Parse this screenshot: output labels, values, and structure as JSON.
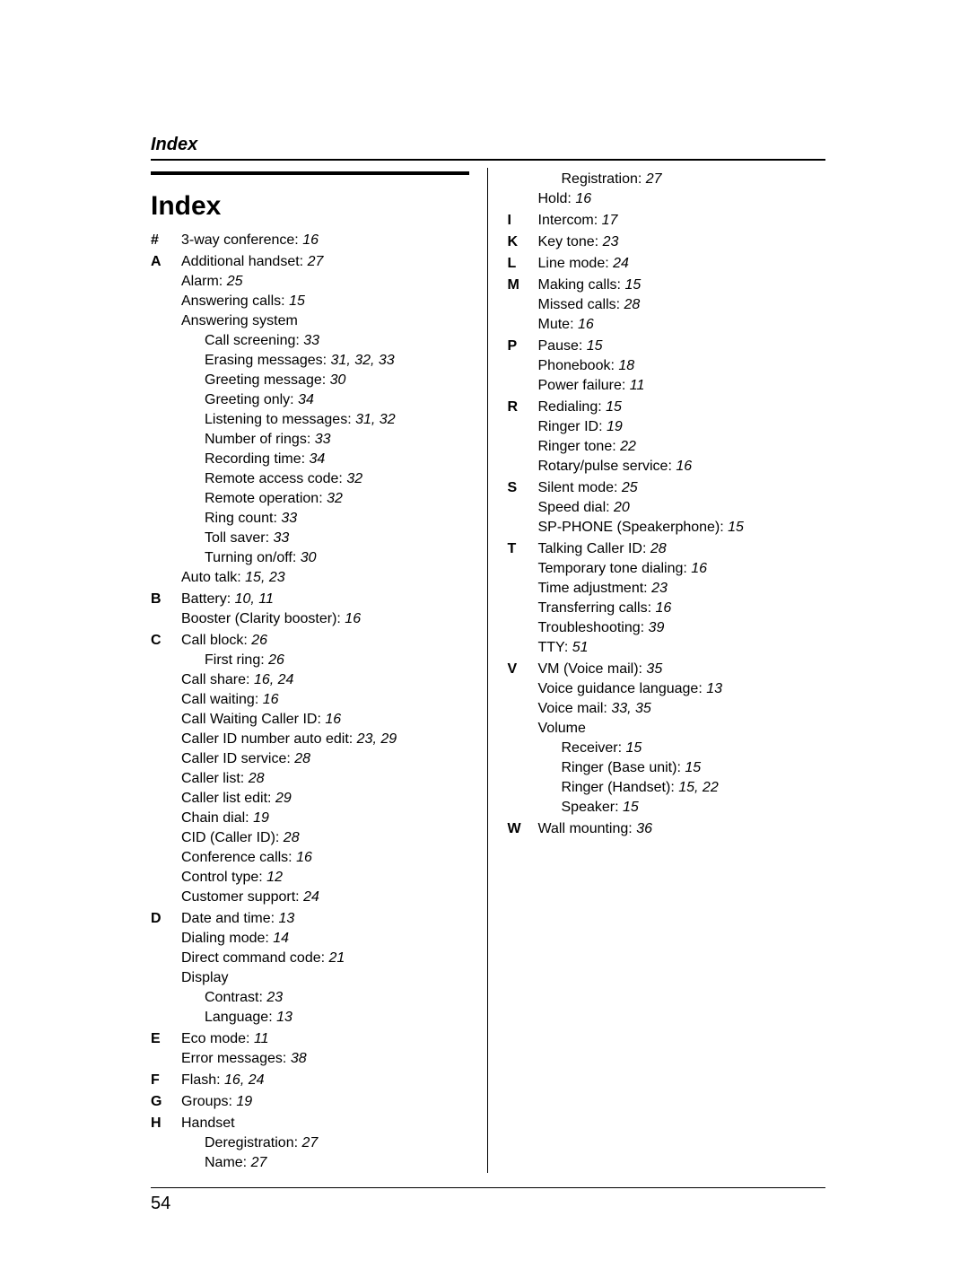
{
  "runningHead": "Index",
  "title": "Index",
  "pageNumber": "54",
  "left": [
    {
      "letter": "#",
      "entries": [
        {
          "topic": "3-way conference:",
          "pages": "16"
        }
      ]
    },
    {
      "letter": "A",
      "entries": [
        {
          "topic": "Additional handset:",
          "pages": "27"
        },
        {
          "topic": "Alarm:",
          "pages": "25"
        },
        {
          "topic": "Answering calls:",
          "pages": "15"
        },
        {
          "topic": "Answering system"
        },
        {
          "sub": true,
          "topic": "Call screening:",
          "pages": "33"
        },
        {
          "sub": true,
          "topic": "Erasing messages:",
          "pages": "31, 32, 33"
        },
        {
          "sub": true,
          "topic": "Greeting message:",
          "pages": "30"
        },
        {
          "sub": true,
          "topic": "Greeting only:",
          "pages": "34"
        },
        {
          "sub": true,
          "topic": "Listening to messages:",
          "pages": "31, 32"
        },
        {
          "sub": true,
          "topic": "Number of rings:",
          "pages": "33"
        },
        {
          "sub": true,
          "topic": "Recording time:",
          "pages": "34"
        },
        {
          "sub": true,
          "topic": "Remote access code:",
          "pages": "32"
        },
        {
          "sub": true,
          "topic": "Remote operation:",
          "pages": "32"
        },
        {
          "sub": true,
          "topic": "Ring count:",
          "pages": "33"
        },
        {
          "sub": true,
          "topic": "Toll saver:",
          "pages": "33"
        },
        {
          "sub": true,
          "topic": "Turning on/off:",
          "pages": "30"
        },
        {
          "topic": "Auto talk:",
          "pages": "15, 23"
        }
      ]
    },
    {
      "letter": "B",
      "entries": [
        {
          "topic": "Battery:",
          "pages": "10, 11"
        },
        {
          "topic": "Booster (Clarity booster):",
          "pages": "16"
        }
      ]
    },
    {
      "letter": "C",
      "entries": [
        {
          "topic": "Call block:",
          "pages": "26"
        },
        {
          "sub": true,
          "topic": "First ring:",
          "pages": "26"
        },
        {
          "topic": "Call share:",
          "pages": "16, 24"
        },
        {
          "topic": "Call waiting:",
          "pages": "16"
        },
        {
          "topic": "Call Waiting Caller ID:",
          "pages": "16"
        },
        {
          "topic": "Caller ID number auto edit:",
          "pages": "23, 29"
        },
        {
          "topic": "Caller ID service:",
          "pages": "28"
        },
        {
          "topic": "Caller list:",
          "pages": "28"
        },
        {
          "topic": "Caller list edit:",
          "pages": "29"
        },
        {
          "topic": "Chain dial:",
          "pages": "19"
        },
        {
          "topic": "CID (Caller ID):",
          "pages": "28"
        },
        {
          "topic": "Conference calls:",
          "pages": "16"
        },
        {
          "topic": "Control type:",
          "pages": "12"
        },
        {
          "topic": "Customer support:",
          "pages": "24"
        }
      ]
    },
    {
      "letter": "D",
      "entries": [
        {
          "topic": "Date and time:",
          "pages": "13"
        },
        {
          "topic": "Dialing mode:",
          "pages": "14"
        },
        {
          "topic": "Direct command code:",
          "pages": "21"
        },
        {
          "topic": "Display"
        },
        {
          "sub": true,
          "topic": "Contrast:",
          "pages": "23"
        },
        {
          "sub": true,
          "topic": "Language:",
          "pages": "13"
        }
      ]
    },
    {
      "letter": "E",
      "entries": [
        {
          "topic": "Eco mode:",
          "pages": "11"
        },
        {
          "topic": "Error messages:",
          "pages": "38"
        }
      ]
    },
    {
      "letter": "F",
      "entries": [
        {
          "topic": "Flash:",
          "pages": "16, 24"
        }
      ]
    },
    {
      "letter": "G",
      "entries": [
        {
          "topic": "Groups:",
          "pages": "19"
        }
      ]
    },
    {
      "letter": "H",
      "entries": [
        {
          "topic": "Handset"
        },
        {
          "sub": true,
          "topic": "Deregistration:",
          "pages": "27"
        },
        {
          "sub": true,
          "topic": "Name:",
          "pages": "27"
        }
      ]
    }
  ],
  "right": [
    {
      "letter": "",
      "entries": [
        {
          "sub": true,
          "topic": "Registration:",
          "pages": "27"
        },
        {
          "topic": "Hold:",
          "pages": "16"
        }
      ]
    },
    {
      "letter": "I",
      "entries": [
        {
          "topic": "Intercom:",
          "pages": "17"
        }
      ]
    },
    {
      "letter": "K",
      "entries": [
        {
          "topic": "Key tone:",
          "pages": "23"
        }
      ]
    },
    {
      "letter": "L",
      "entries": [
        {
          "topic": "Line mode:",
          "pages": "24"
        }
      ]
    },
    {
      "letter": "M",
      "entries": [
        {
          "topic": "Making calls:",
          "pages": "15"
        },
        {
          "topic": "Missed calls:",
          "pages": "28"
        },
        {
          "topic": "Mute:",
          "pages": "16"
        }
      ]
    },
    {
      "letter": "P",
      "entries": [
        {
          "topic": "Pause:",
          "pages": "15"
        },
        {
          "topic": "Phonebook:",
          "pages": "18"
        },
        {
          "topic": "Power failure:",
          "pages": "11"
        }
      ]
    },
    {
      "letter": "R",
      "entries": [
        {
          "topic": "Redialing:",
          "pages": "15"
        },
        {
          "topic": "Ringer ID:",
          "pages": "19"
        },
        {
          "topic": "Ringer tone:",
          "pages": "22"
        },
        {
          "topic": "Rotary/pulse service:",
          "pages": "16"
        }
      ]
    },
    {
      "letter": "S",
      "entries": [
        {
          "topic": "Silent mode:",
          "pages": "25"
        },
        {
          "topic": "Speed dial:",
          "pages": "20"
        },
        {
          "topic": "SP-PHONE (Speakerphone):",
          "pages": "15"
        }
      ]
    },
    {
      "letter": "T",
      "entries": [
        {
          "topic": "Talking Caller ID:",
          "pages": "28"
        },
        {
          "topic": "Temporary tone dialing:",
          "pages": "16"
        },
        {
          "topic": "Time adjustment:",
          "pages": "23"
        },
        {
          "topic": "Transferring calls:",
          "pages": "16"
        },
        {
          "topic": "Troubleshooting:",
          "pages": "39"
        },
        {
          "topic": "TTY:",
          "pages": "51"
        }
      ]
    },
    {
      "letter": "V",
      "entries": [
        {
          "topic": "VM (Voice mail):",
          "pages": "35"
        },
        {
          "topic": "Voice guidance language:",
          "pages": "13"
        },
        {
          "topic": "Voice mail:",
          "pages": "33, 35"
        },
        {
          "topic": "Volume"
        },
        {
          "sub": true,
          "topic": "Receiver:",
          "pages": "15"
        },
        {
          "sub": true,
          "topic": "Ringer (Base unit):",
          "pages": "15"
        },
        {
          "sub": true,
          "topic": "Ringer (Handset):",
          "pages": "15, 22"
        },
        {
          "sub": true,
          "topic": "Speaker:",
          "pages": "15"
        }
      ]
    },
    {
      "letter": "W",
      "entries": [
        {
          "topic": "Wall mounting:",
          "pages": "36"
        }
      ]
    }
  ]
}
